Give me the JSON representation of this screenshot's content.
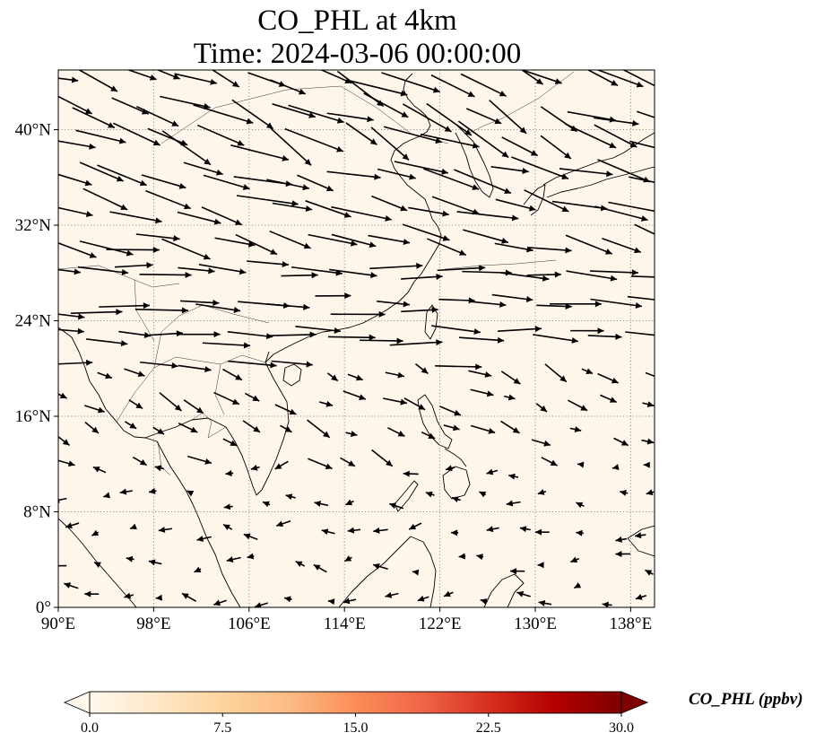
{
  "title": {
    "line1": "CO_PHL at 4km",
    "line2": "Time: 2024-03-06 00:00:00"
  },
  "map": {
    "lon_range": [
      90,
      140
    ],
    "lat_range": [
      0,
      45
    ],
    "x_ticks": [
      {
        "lon": 90,
        "label": "90°E"
      },
      {
        "lon": 98,
        "label": "98°E"
      },
      {
        "lon": 106,
        "label": "106°E"
      },
      {
        "lon": 114,
        "label": "114°E"
      },
      {
        "lon": 122,
        "label": "122°E"
      },
      {
        "lon": 130,
        "label": "130°E"
      },
      {
        "lon": 138,
        "label": "138°E"
      }
    ],
    "y_ticks": [
      {
        "lat": 0,
        "label": "0°"
      },
      {
        "lat": 8,
        "label": "8°N"
      },
      {
        "lat": 16,
        "label": "16°N"
      },
      {
        "lat": 24,
        "label": "24°N"
      },
      {
        "lat": 32,
        "label": "32°N"
      },
      {
        "lat": 40,
        "label": "40°N"
      }
    ],
    "gridlines": "dotted",
    "field_color": "#fef6ea",
    "overlay": "wind vectors"
  },
  "colorbar": {
    "title": "CO_PHL (ppbv)",
    "ticks": [
      "0.0",
      "7.5",
      "15.0",
      "22.5",
      "30.0"
    ],
    "range": [
      0,
      30
    ],
    "colormap": "OrRd",
    "stops": [
      "#fff7ec",
      "#fee8c8",
      "#fdd49e",
      "#fdbb84",
      "#fc8d59",
      "#ef6548",
      "#d7301f",
      "#b30000",
      "#7f0000"
    ],
    "extend": "both"
  }
}
